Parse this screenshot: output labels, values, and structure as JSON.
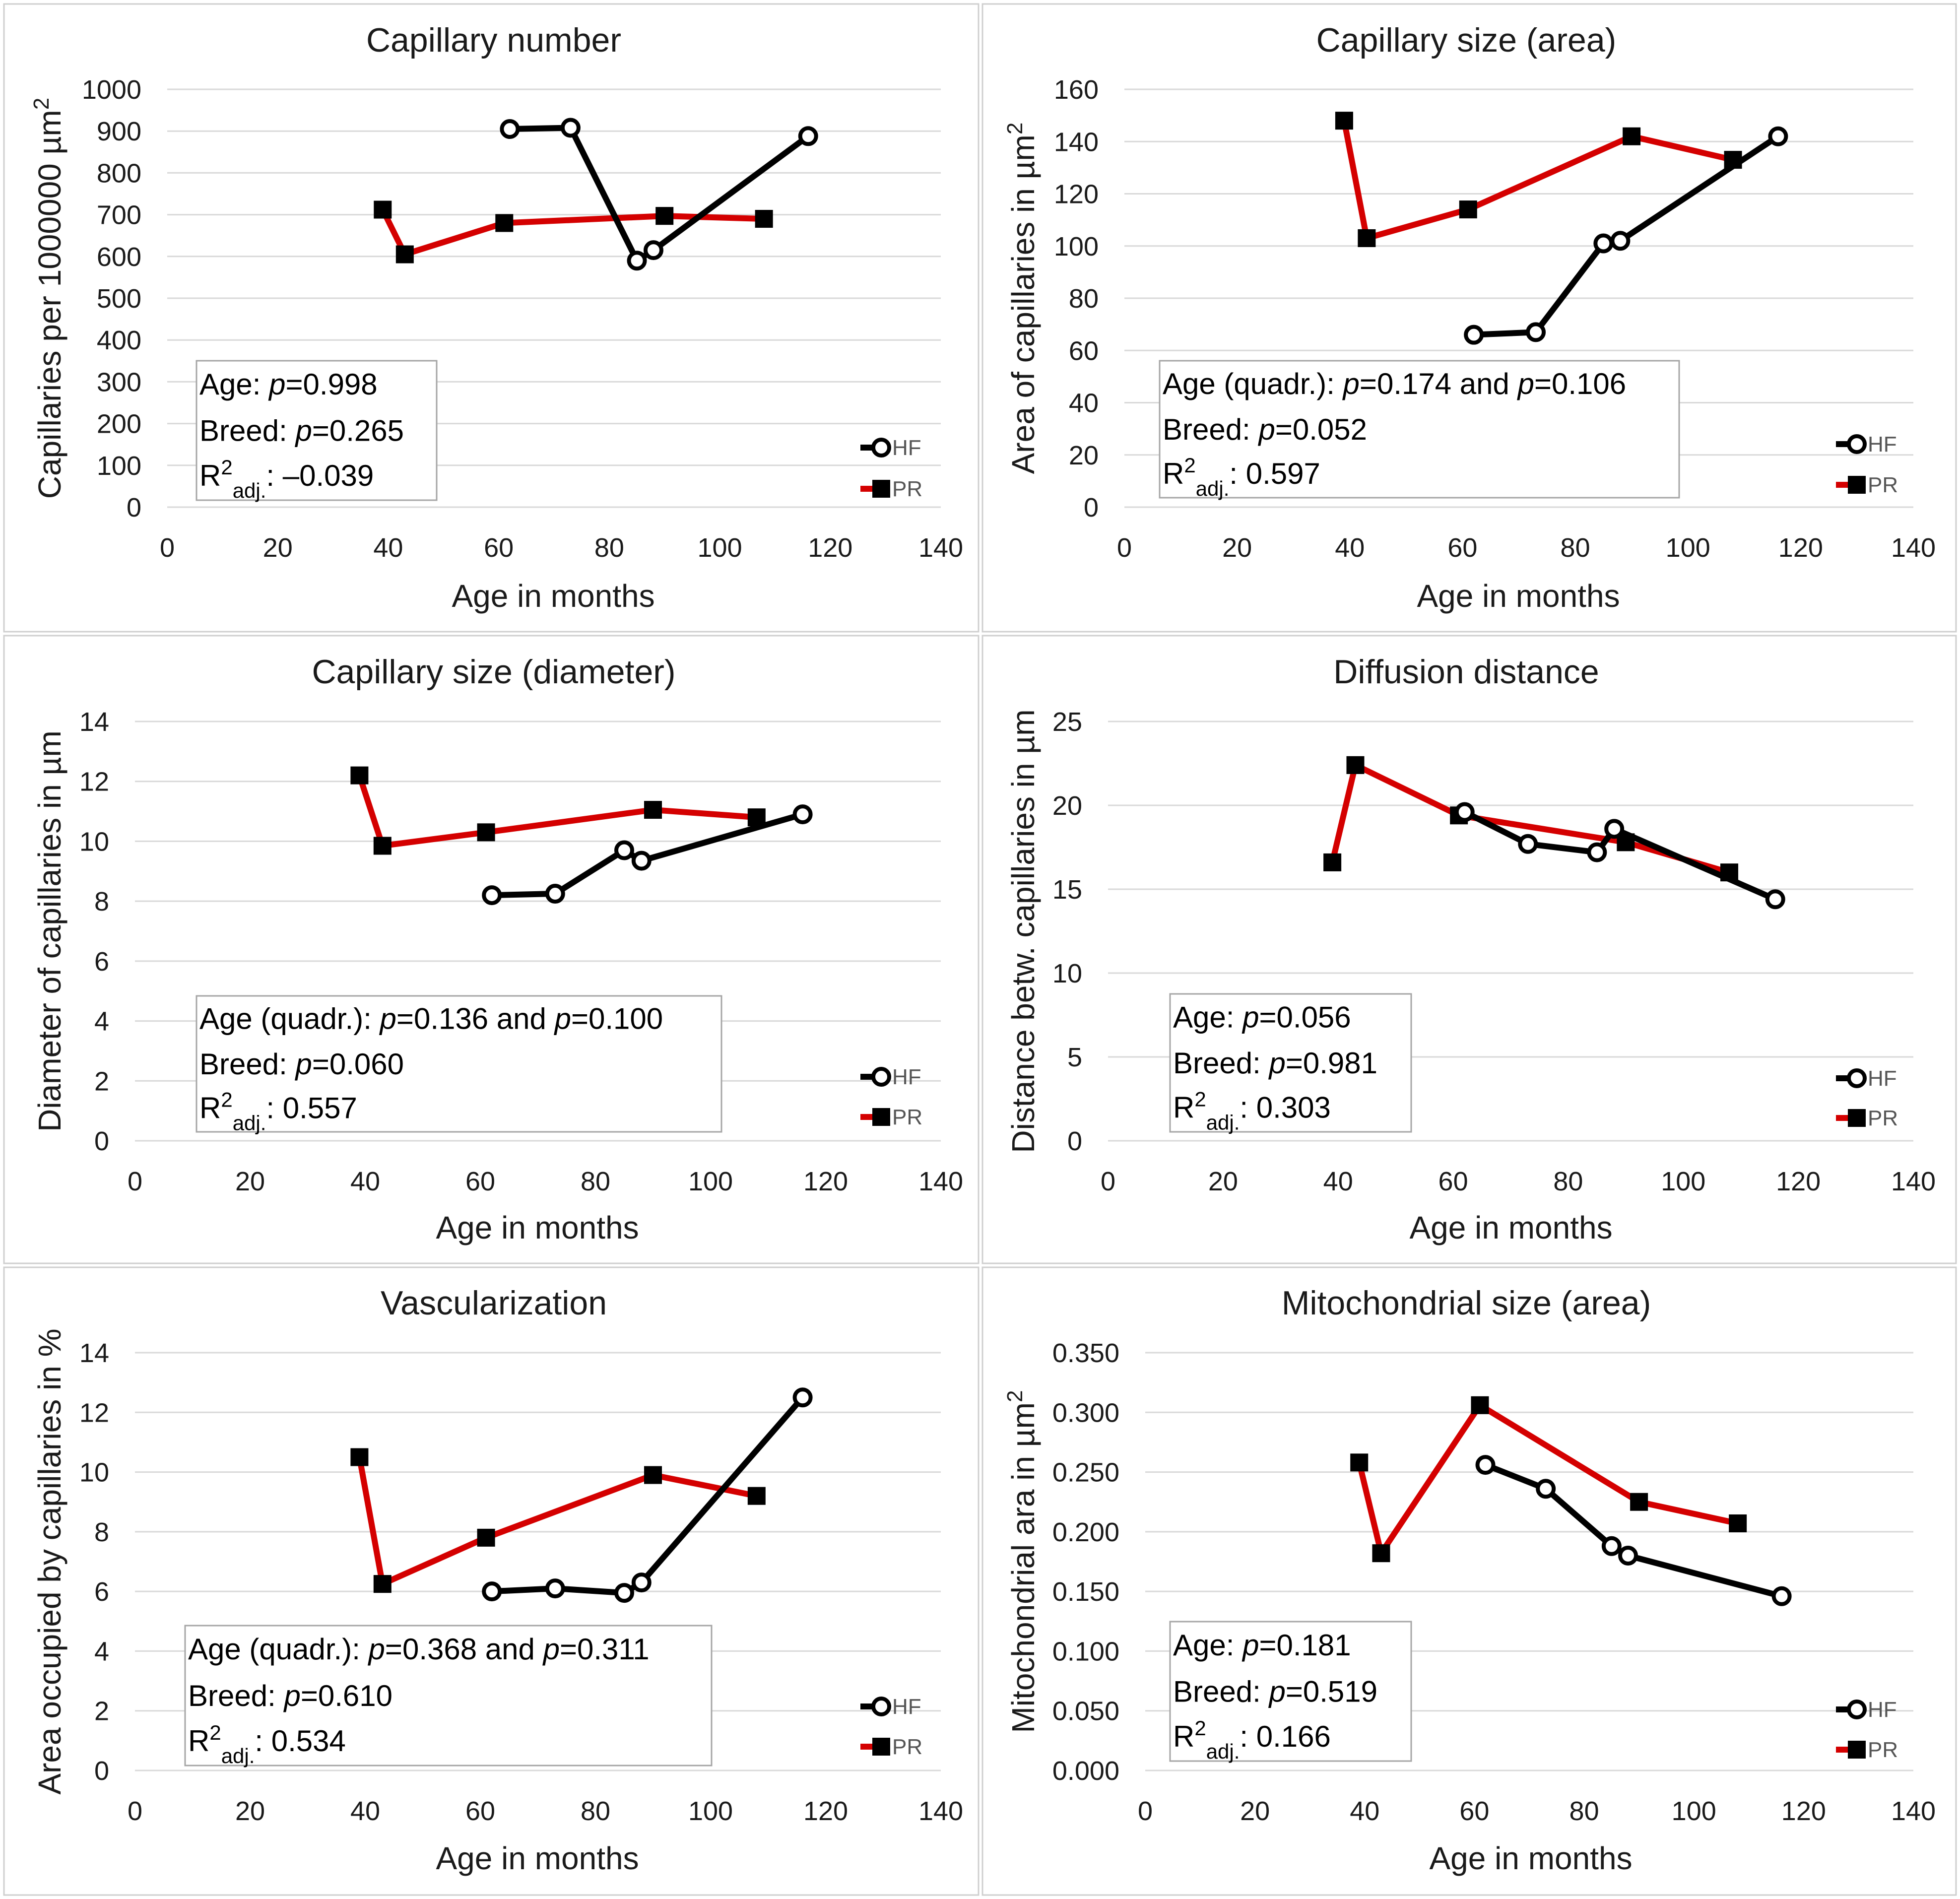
{
  "colors": {
    "hf": "#000000",
    "pr": "#d40000",
    "grid": "#d9d9d9",
    "text": "#1a1a1a"
  },
  "legend": {
    "hf": "HF",
    "pr": "PR"
  },
  "chart_data": [
    {
      "type": "line",
      "title": "Capillary number",
      "xlabel": "Age in months",
      "ylabel": "Capillaries per 1000000 µm²",
      "xlim": [
        0,
        140
      ],
      "ylim": [
        0,
        1000
      ],
      "xticks": [
        "0",
        "20",
        "40",
        "60",
        "80",
        "100",
        "120",
        "140"
      ],
      "yticks": [
        "0",
        "100",
        "200",
        "300",
        "400",
        "500",
        "600",
        "700",
        "800",
        "900",
        "1000"
      ],
      "series": [
        {
          "name": "HF",
          "x": [
            62,
            73,
            85,
            88,
            116
          ],
          "y": [
            905,
            908,
            590,
            615,
            888
          ]
        },
        {
          "name": "PR",
          "x": [
            39,
            43,
            61,
            90,
            108
          ],
          "y": [
            712,
            605,
            680,
            697,
            690
          ]
        }
      ],
      "stats": {
        "age": {
          "prefix": "Age: ",
          "p1": "=0.998"
        },
        "breed": {
          "prefix": "Breed: ",
          "p": "=0.265"
        },
        "r2": {
          "value": ": –0.039"
        }
      },
      "legend": "right"
    },
    {
      "type": "line",
      "title": "Capillary size (area)",
      "xlabel": "Age in months",
      "ylabel": "Area of capillaries in µm²",
      "xlim": [
        0,
        140
      ],
      "ylim": [
        0,
        160
      ],
      "xticks": [
        "0",
        "20",
        "40",
        "60",
        "80",
        "100",
        "120",
        "140"
      ],
      "yticks": [
        "0",
        "20",
        "40",
        "60",
        "80",
        "100",
        "120",
        "140",
        "160"
      ],
      "series": [
        {
          "name": "HF",
          "x": [
            62,
            73,
            85,
            88,
            116
          ],
          "y": [
            66,
            67,
            101,
            102,
            142
          ]
        },
        {
          "name": "PR",
          "x": [
            39,
            43,
            61,
            90,
            108
          ],
          "y": [
            148,
            103,
            114,
            142,
            133
          ]
        }
      ],
      "stats": {
        "age": {
          "prefix": "Age (quadr.): ",
          "p1": "=0.174",
          "mid": " and ",
          "p2": "=0.106"
        },
        "breed": {
          "prefix": "Breed: ",
          "p": "=0.052"
        },
        "r2": {
          "value": ": 0.597"
        }
      },
      "legend": "right"
    },
    {
      "type": "line",
      "title": "Capillary size (diameter)",
      "xlabel": "Age in months",
      "ylabel": "Diameter of capillaries in µm",
      "xlim": [
        0,
        140
      ],
      "ylim": [
        0,
        14
      ],
      "xticks": [
        "0",
        "20",
        "40",
        "60",
        "80",
        "100",
        "120",
        "140"
      ],
      "yticks": [
        "0",
        "2",
        "4",
        "6",
        "8",
        "10",
        "12",
        "14"
      ],
      "series": [
        {
          "name": "HF",
          "x": [
            62,
            73,
            85,
            88,
            116
          ],
          "y": [
            8.2,
            8.25,
            9.7,
            9.35,
            10.9
          ]
        },
        {
          "name": "PR",
          "x": [
            39,
            43,
            61,
            90,
            108
          ],
          "y": [
            12.2,
            9.85,
            10.3,
            11.05,
            10.8
          ]
        }
      ],
      "stats": {
        "age": {
          "prefix": "Age (quadr.): ",
          "p1": "=0.136",
          "mid": " and ",
          "p2": "=0.100"
        },
        "breed": {
          "prefix": "Breed: ",
          "p": "=0.060"
        },
        "r2": {
          "value": ": 0.557"
        }
      },
      "legend": "right"
    },
    {
      "type": "line",
      "title": "Diffusion distance",
      "xlabel": "Age in months",
      "ylabel": "Distance betw. capillaries in µm",
      "xlim": [
        0,
        140
      ],
      "ylim": [
        0,
        25
      ],
      "xticks": [
        "0",
        "20",
        "40",
        "60",
        "80",
        "100",
        "120",
        "140"
      ],
      "yticks": [
        "0",
        "5",
        "10",
        "15",
        "20",
        "25"
      ],
      "series": [
        {
          "name": "HF",
          "x": [
            62,
            73,
            85,
            88,
            116
          ],
          "y": [
            19.6,
            17.7,
            17.2,
            18.6,
            14.4
          ]
        },
        {
          "name": "PR",
          "x": [
            39,
            43,
            61,
            90,
            108
          ],
          "y": [
            16.6,
            22.4,
            19.4,
            17.8,
            16.0
          ]
        }
      ],
      "stats": {
        "age": {
          "prefix": "Age: ",
          "p1": "=0.056"
        },
        "breed": {
          "prefix": "Breed: ",
          "p": "=0.981"
        },
        "r2": {
          "value": ": 0.303"
        }
      },
      "legend": "right"
    },
    {
      "type": "line",
      "title": "Vascularization",
      "xlabel": "Age in months",
      "ylabel": "Area occupied by capillaries in %",
      "xlim": [
        0,
        140
      ],
      "ylim": [
        0,
        14
      ],
      "xticks": [
        "0",
        "20",
        "40",
        "60",
        "80",
        "100",
        "120",
        "140"
      ],
      "yticks": [
        "0",
        "2",
        "4",
        "6",
        "8",
        "10",
        "12",
        "14"
      ],
      "series": [
        {
          "name": "HF",
          "x": [
            62,
            73,
            85,
            88,
            116
          ],
          "y": [
            6.0,
            6.1,
            5.95,
            6.3,
            12.5
          ]
        },
        {
          "name": "PR",
          "x": [
            39,
            43,
            61,
            90,
            108
          ],
          "y": [
            10.5,
            6.25,
            7.8,
            9.9,
            9.2
          ]
        }
      ],
      "stats": {
        "age": {
          "prefix": "Age (quadr.): ",
          "p1": "=0.368",
          "mid": " and ",
          "p2": "=0.311"
        },
        "breed": {
          "prefix": "Breed: ",
          "p": "=0.610"
        },
        "r2": {
          "value": ": 0.534"
        }
      },
      "legend": "right"
    },
    {
      "type": "line",
      "title": "Mitochondrial size (area)",
      "xlabel": "Age in months",
      "ylabel": "Mitochondrial ara in µm²",
      "xlim": [
        0,
        140
      ],
      "ylim": [
        0,
        0.35
      ],
      "xticks": [
        "0",
        "20",
        "40",
        "60",
        "80",
        "100",
        "120",
        "140"
      ],
      "yticks": [
        "0.000",
        "0.050",
        "0.100",
        "0.150",
        "0.200",
        "0.250",
        "0.300",
        "0.350"
      ],
      "series": [
        {
          "name": "HF",
          "x": [
            62,
            73,
            85,
            88,
            116
          ],
          "y": [
            0.256,
            0.236,
            0.188,
            0.18,
            0.146
          ]
        },
        {
          "name": "PR",
          "x": [
            39,
            43,
            61,
            90,
            108
          ],
          "y": [
            0.258,
            0.182,
            0.306,
            0.225,
            0.207
          ]
        }
      ],
      "stats": {
        "age": {
          "prefix": "Age: ",
          "p1": "=0.181"
        },
        "breed": {
          "prefix": "Breed: ",
          "p": "=0.519"
        },
        "r2": {
          "value": ": 0.166"
        }
      },
      "legend": "right"
    }
  ]
}
